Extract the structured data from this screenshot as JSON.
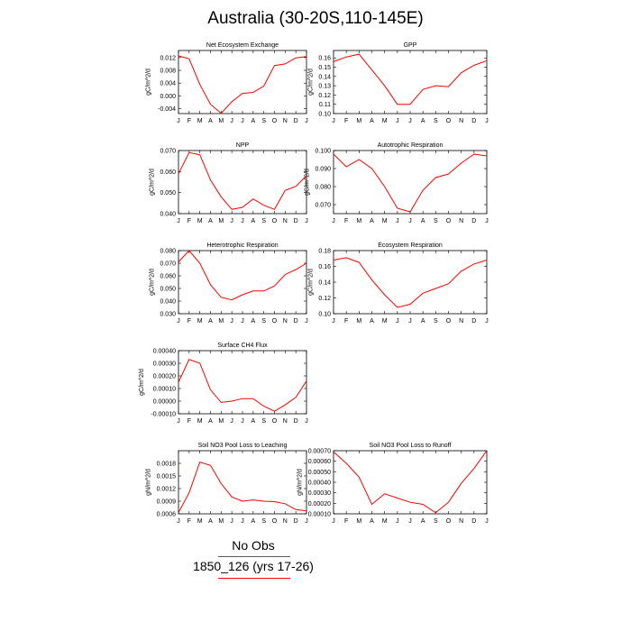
{
  "title": "Australia (30-20S,110-145E)",
  "months": [
    "J",
    "F",
    "M",
    "A",
    "M",
    "J",
    "J",
    "A",
    "S",
    "O",
    "N",
    "D",
    "J"
  ],
  "legend": {
    "obs_label": "No Obs",
    "obs_color": "#5a5a5a",
    "model_label": "1850_126 (yrs 17-26)",
    "model_color": "#ff0000"
  },
  "chart_data": [
    {
      "type": "line",
      "title": "Net Ecosystem Exchange",
      "ylabel": "gC/m^2/d",
      "ylim": [
        -0.0055,
        0.0142
      ],
      "yticks": [
        -0.004,
        0.0,
        0.004,
        0.008,
        0.012
      ],
      "yticklabels": [
        "-0.004",
        "0.000",
        "0.004",
        "0.008",
        "0.012"
      ],
      "series": [
        {
          "color": "#ff0000",
          "values": [
            0.0125,
            0.0116,
            0.0036,
            -0.0026,
            -0.0054,
            -0.0018,
            0.0008,
            0.0011,
            0.0031,
            0.0095,
            0.01,
            0.0119,
            0.0123
          ]
        }
      ]
    },
    {
      "type": "line",
      "title": "GPP",
      "ylabel": "gC/m^2/d",
      "ylim": [
        0.1,
        0.168
      ],
      "yticks": [
        0.1,
        0.11,
        0.12,
        0.13,
        0.14,
        0.15,
        0.16
      ],
      "yticklabels": [
        "0.10",
        "0.11",
        "0.12",
        "0.13",
        "0.14",
        "0.15",
        "0.16"
      ],
      "series": [
        {
          "color": "#ff0000",
          "values": [
            0.156,
            0.161,
            0.164,
            0.147,
            0.13,
            0.11,
            0.11,
            0.126,
            0.13,
            0.129,
            0.144,
            0.152,
            0.157
          ]
        }
      ]
    },
    {
      "type": "line",
      "title": "NPP",
      "ylabel": "gC/m^2/d",
      "ylim": [
        0.04,
        0.07
      ],
      "yticks": [
        0.04,
        0.05,
        0.06,
        0.07
      ],
      "yticklabels": [
        "0.040",
        "0.050",
        "0.060",
        "0.070"
      ],
      "series": [
        {
          "color": "#ff0000",
          "values": [
            0.059,
            0.069,
            0.068,
            0.056,
            0.048,
            0.042,
            0.043,
            0.047,
            0.044,
            0.042,
            0.051,
            0.053,
            0.058
          ]
        }
      ]
    },
    {
      "type": "line",
      "title": "Autotrophic Respiration",
      "ylabel": "gC/m^2/d",
      "ylim": [
        0.065,
        0.1
      ],
      "yticks": [
        0.07,
        0.08,
        0.09,
        0.1
      ],
      "yticklabels": [
        "0.070",
        "0.080",
        "0.090",
        "0.100"
      ],
      "series": [
        {
          "color": "#ff0000",
          "values": [
            0.098,
            0.091,
            0.095,
            0.09,
            0.08,
            0.068,
            0.066,
            0.078,
            0.085,
            0.087,
            0.093,
            0.098,
            0.097
          ]
        }
      ]
    },
    {
      "type": "line",
      "title": "Heterotrophic Respiration",
      "ylabel": "gC/m^2/d",
      "ylim": [
        0.03,
        0.08
      ],
      "yticks": [
        0.03,
        0.04,
        0.05,
        0.06,
        0.07,
        0.08
      ],
      "yticklabels": [
        "0.030",
        "0.040",
        "0.050",
        "0.060",
        "0.070",
        "0.080"
      ],
      "series": [
        {
          "color": "#ff0000",
          "values": [
            0.071,
            0.08,
            0.07,
            0.053,
            0.043,
            0.041,
            0.045,
            0.048,
            0.048,
            0.052,
            0.061,
            0.065,
            0.07
          ]
        }
      ]
    },
    {
      "type": "line",
      "title": "Ecosystem Respiration",
      "ylabel": "gC/m^2/d",
      "ylim": [
        0.1,
        0.18
      ],
      "yticks": [
        0.1,
        0.12,
        0.14,
        0.16,
        0.18
      ],
      "yticklabels": [
        "0.10",
        "0.12",
        "0.14",
        "0.16",
        "0.18"
      ],
      "series": [
        {
          "color": "#ff0000",
          "values": [
            0.168,
            0.171,
            0.165,
            0.143,
            0.124,
            0.108,
            0.112,
            0.126,
            0.132,
            0.138,
            0.154,
            0.163,
            0.168
          ]
        }
      ]
    },
    {
      "type": "line",
      "title": "Surface CH4 Flux",
      "ylabel": "gC/m^2/d",
      "ylim": [
        -0.0001,
        0.0004
      ],
      "yticks": [
        -0.0001,
        0.0,
        0.0001,
        0.0002,
        0.0003,
        0.0004
      ],
      "yticklabels": [
        "-0.00010",
        "0.00000",
        "0.00010",
        "0.00020",
        "0.00030",
        "0.00040"
      ],
      "series": [
        {
          "color": "#ff0000",
          "values": [
            0.00015,
            0.00033,
            0.0003,
            9e-05,
            -1e-05,
            0.0,
            2e-05,
            2e-05,
            -4e-05,
            -8e-05,
            -3e-05,
            3e-05,
            0.00016
          ]
        }
      ]
    },
    {
      "type": "line",
      "title": "Soil NO3 Pool Loss to Leaching",
      "ylabel": "gN/m^2/d",
      "ylim": [
        0.0006,
        0.0021
      ],
      "yticks": [
        0.0006,
        0.0009,
        0.0012,
        0.0015,
        0.0018
      ],
      "yticklabels": [
        "0.0006",
        "0.0009",
        "0.0012",
        "0.0015",
        "0.0018"
      ],
      "series": [
        {
          "color": "#ff0000",
          "values": [
            0.00063,
            0.0011,
            0.00183,
            0.00175,
            0.00132,
            0.001,
            0.0009,
            0.00093,
            0.0009,
            0.00089,
            0.00084,
            0.0007,
            0.00067
          ]
        }
      ]
    },
    {
      "type": "line",
      "title": "Soil NO3 Pool Loss to Runoff",
      "ylabel": "gN/m^2/d",
      "ylim": [
        0.0001,
        0.0007
      ],
      "yticks": [
        0.0001,
        0.0002,
        0.0003,
        0.0004,
        0.0005,
        0.0006,
        0.0007
      ],
      "yticklabels": [
        "0.00010",
        "0.00020",
        "0.00030",
        "0.00040",
        "0.00050",
        "0.00060",
        "0.00070"
      ],
      "series": [
        {
          "color": "#ff0000",
          "values": [
            0.00069,
            0.00058,
            0.00045,
            0.00019,
            0.00029,
            0.00025,
            0.00021,
            0.00019,
            0.00011,
            0.00021,
            0.00039,
            0.00053,
            0.0007
          ]
        }
      ]
    }
  ]
}
